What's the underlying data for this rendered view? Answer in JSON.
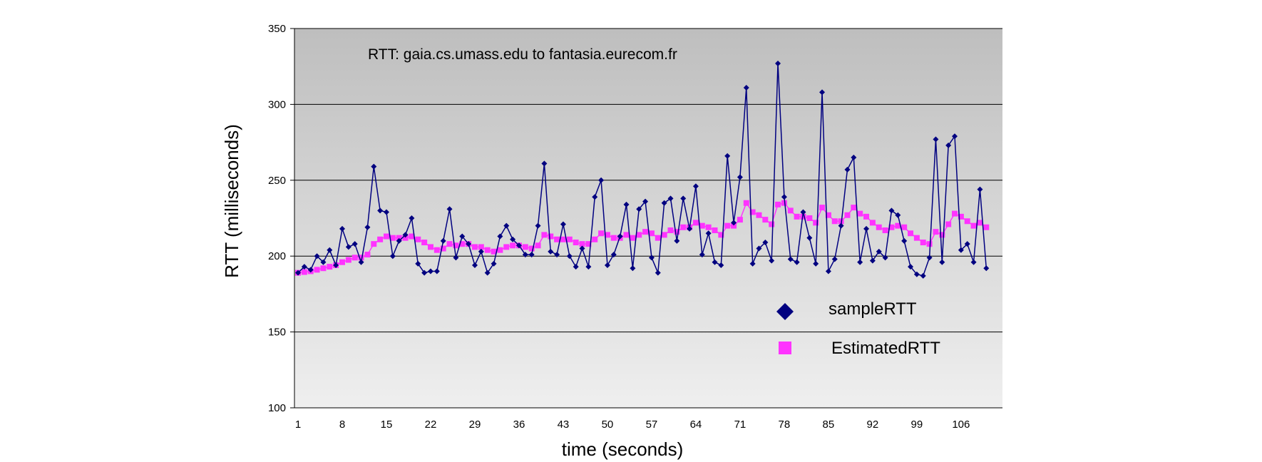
{
  "chart_data": {
    "type": "line",
    "title": "RTT: gaia.cs.umass.edu to fantasia.eurecom.fr",
    "xlabel": "time (seconds)",
    "ylabel": "RTT (milliseconds)",
    "ylim": [
      100,
      350
    ],
    "yticks": [
      "100",
      "150",
      "200",
      "250",
      "300",
      "350"
    ],
    "xlim": [
      1,
      112
    ],
    "xticks": [
      "1",
      "8",
      "15",
      "22",
      "29",
      "36",
      "43",
      "50",
      "57",
      "64",
      "71",
      "78",
      "85",
      "92",
      "99",
      "106"
    ],
    "grid": true,
    "legend_position": "lower-right",
    "colors": {
      "sampleRTT": "#000080",
      "EstimatedRTT": "#ff33ff",
      "plot_bg_top": "#bebebe",
      "plot_bg_bottom": "#efefef"
    },
    "series": [
      {
        "name": "sampleRTT",
        "marker": "diamond",
        "values": [
          189,
          193,
          191,
          200,
          196,
          204,
          194,
          218,
          206,
          208,
          196,
          219,
          259,
          230,
          229,
          200,
          210,
          214,
          225,
          195,
          189,
          190,
          190,
          210,
          231,
          199,
          213,
          208,
          194,
          203,
          189,
          195,
          213,
          220,
          211,
          207,
          201,
          201,
          220,
          261,
          203,
          201,
          221,
          200,
          193,
          205,
          193,
          239,
          250,
          194,
          201,
          213,
          234,
          192,
          231,
          236,
          199,
          189,
          235,
          238,
          210,
          238,
          218,
          246,
          201,
          215,
          196,
          194,
          266,
          222,
          252,
          311,
          195,
          205,
          209,
          197,
          327,
          239,
          198,
          196,
          229,
          212,
          195,
          308,
          190,
          198,
          220,
          257,
          265,
          196,
          218,
          197,
          203,
          199,
          230,
          227,
          210,
          193,
          188,
          187,
          199,
          277,
          196,
          273,
          279,
          204,
          208,
          196,
          244,
          192
        ]
      },
      {
        "name": "EstimatedRTT",
        "marker": "square",
        "values": [
          189,
          189.5,
          190,
          191,
          192,
          193,
          194,
          196,
          197.5,
          199,
          199,
          201,
          208,
          211,
          213,
          212,
          212,
          212,
          213,
          211,
          209,
          206,
          204,
          205,
          208,
          207,
          208,
          208,
          206,
          206,
          204,
          203,
          204,
          206,
          207,
          207,
          206,
          205,
          207,
          214,
          213,
          211,
          211,
          211,
          209,
          208,
          208,
          211,
          215,
          214,
          212,
          212,
          214,
          212,
          214,
          216,
          215,
          212,
          214,
          217,
          216,
          219,
          219,
          222,
          220,
          219,
          217,
          214,
          220,
          220,
          224,
          235,
          229,
          227,
          224,
          221,
          234,
          235,
          230,
          226,
          226,
          225,
          222,
          232,
          227,
          223,
          223,
          227,
          232,
          228,
          226,
          222,
          219,
          217,
          219,
          220,
          219,
          215,
          212,
          209,
          208,
          216,
          214,
          221,
          228,
          226,
          223,
          220,
          222,
          219
        ]
      }
    ]
  }
}
